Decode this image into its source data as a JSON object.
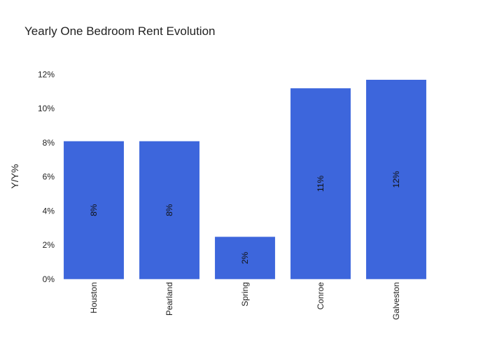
{
  "chart_data": {
    "type": "bar",
    "title": "Yearly One Bedroom Rent Evolution",
    "xlabel": "",
    "ylabel": "Y/Y%",
    "categories": [
      "Houston",
      "Pearland",
      "Spring",
      "Conroe",
      "Galveston"
    ],
    "values": [
      8.1,
      8.1,
      2.5,
      11.2,
      11.7
    ],
    "data_labels": [
      "8%",
      "8%",
      "2%",
      "11%",
      "12%"
    ],
    "ylim": [
      0,
      13
    ],
    "yticks": [
      0,
      2,
      4,
      6,
      8,
      10,
      12
    ],
    "ytick_suffix": "%",
    "grid": false,
    "bar_color": "#3d66dc"
  }
}
